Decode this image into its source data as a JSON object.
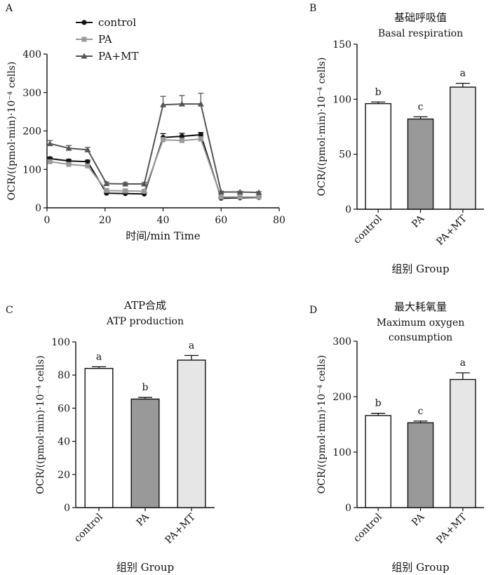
{
  "chart_data": [
    {
      "panel": "A",
      "type": "line",
      "xlabel": "时间/min Time",
      "ylabel": "OCR/((pmol·min)·10⁻⁴ cells)",
      "xlim": [
        0,
        80
      ],
      "ylim": [
        0,
        400
      ],
      "xticks": [
        "0",
        "20",
        "40",
        "60",
        "80"
      ],
      "yticks": [
        "0",
        "100",
        "200",
        "300",
        "400"
      ],
      "legend_position": "top-left",
      "series": [
        {
          "name": "control",
          "color": "#111111",
          "marker": "circle",
          "x": [
            1,
            7.5,
            14,
            20.5,
            27,
            33.5,
            40,
            46.5,
            53,
            60,
            66.5,
            73
          ],
          "y": [
            128,
            122,
            120,
            38,
            37,
            36,
            183,
            186,
            190,
            25,
            26,
            27
          ],
          "err": [
            4,
            4,
            4,
            3,
            3,
            3,
            10,
            8,
            6,
            2,
            2,
            2
          ]
        },
        {
          "name": "PA",
          "color": "#999999",
          "marker": "square",
          "x": [
            1,
            7.5,
            14,
            20.5,
            27,
            33.5,
            40,
            46.5,
            53,
            60,
            66.5,
            73
          ],
          "y": [
            120,
            113,
            109,
            45,
            44,
            43,
            177,
            175,
            179,
            28,
            28,
            28
          ],
          "err": [
            4,
            4,
            4,
            5,
            5,
            5,
            6,
            6,
            6,
            2,
            2,
            2
          ]
        },
        {
          "name": "PA+MT",
          "color": "#555555",
          "marker": "triangle",
          "x": [
            1,
            7.5,
            14,
            20.5,
            27,
            33.5,
            40,
            46.5,
            53,
            60,
            66.5,
            73
          ],
          "y": [
            167,
            155,
            151,
            63,
            62,
            62,
            268,
            270,
            270,
            41,
            41,
            40
          ],
          "err": [
            8,
            7,
            6,
            4,
            4,
            4,
            22,
            22,
            28,
            2,
            2,
            2
          ]
        }
      ]
    },
    {
      "panel": "B",
      "type": "bar",
      "title": "基础呼吸值",
      "subtitle": "Basal respiration",
      "xlabel": "组别 Group",
      "ylabel": "OCR/((pmol·min)·10⁻⁴ cells)",
      "ylim": [
        0,
        150
      ],
      "yticks": [
        "0",
        "50",
        "100",
        "150"
      ],
      "categories": [
        "control",
        "PA",
        "PA+MT"
      ],
      "values": [
        96,
        82,
        111
      ],
      "err": [
        1.5,
        2,
        3.5
      ],
      "letters": [
        "b",
        "c",
        "a"
      ],
      "colors": [
        "#ffffff",
        "#999999",
        "#e6e6e6"
      ]
    },
    {
      "panel": "C",
      "type": "bar",
      "title": "ATP合成",
      "subtitle": "ATP production",
      "xlabel": "组别 Group",
      "ylabel": "",
      "ylim": [
        0,
        100
      ],
      "yticks": [
        "0",
        "20",
        "40",
        "60",
        "80",
        "100"
      ],
      "categories": [
        "control",
        "PA",
        "PA+MT"
      ],
      "values": [
        84,
        65.5,
        89
      ],
      "err": [
        1,
        1,
        2.8
      ],
      "letters": [
        "a",
        "b",
        "a"
      ],
      "colors": [
        "#ffffff",
        "#999999",
        "#e6e6e6"
      ]
    },
    {
      "panel": "D",
      "type": "bar",
      "title": "最大耗氧量",
      "subtitle": "Maximum oxygen consumption",
      "xlabel": "组别 Group",
      "ylabel": "OCR/((pmol·min)·10⁻⁴ cells)",
      "ylim": [
        0,
        300
      ],
      "yticks": [
        "0",
        "100",
        "200",
        "300"
      ],
      "categories": [
        "control",
        "PA",
        "PA+MT"
      ],
      "values": [
        166,
        153,
        231
      ],
      "err": [
        4,
        3,
        12
      ],
      "letters": [
        "b",
        "c",
        "a"
      ],
      "colors": [
        "#ffffff",
        "#999999",
        "#e6e6e6"
      ]
    }
  ],
  "panel_letters": [
    "A",
    "B",
    "C",
    "D"
  ]
}
